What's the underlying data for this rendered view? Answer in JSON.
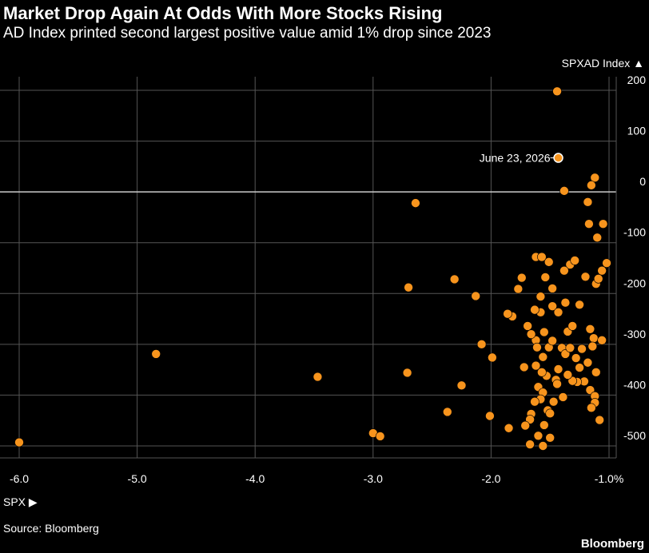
{
  "title": "Market Drop Again At Odds With More Stocks Rising",
  "subtitle": "AD Index printed second largest positive value amid 1% drop since 2023",
  "source": "Source: Bloomberg",
  "brand": "Bloomberg",
  "chart_data": {
    "type": "scatter",
    "xlabel": "SPX ▶",
    "ylabel": "SPXAD Index ▲",
    "xlim": [
      -6.1,
      -0.95
    ],
    "ylim": [
      -510,
      215
    ],
    "x_ticks": [
      "-6.0",
      "-5.0",
      "-4.0",
      "-3.0",
      "-2.0",
      "-1.0%"
    ],
    "x_tick_values": [
      -6.0,
      -5.0,
      -4.0,
      -3.0,
      -2.0,
      -1.0
    ],
    "y_ticks": [
      "200",
      "100",
      "0",
      "-100",
      "-200",
      "-300",
      "-400",
      "-500"
    ],
    "y_tick_values": [
      200,
      100,
      0,
      -100,
      -200,
      -300,
      -400,
      -500
    ],
    "grid": true,
    "colors": {
      "points": "#f7941d",
      "highlight": "#ffffff",
      "background": "#000000",
      "grid": "#555555"
    },
    "annotation": {
      "text": "June 23, 2026",
      "x": -1.43,
      "y": 67
    },
    "series": [
      {
        "points": [
          [
            -1.44,
            198
          ],
          [
            -1.43,
            67
          ],
          [
            -1.12,
            28
          ],
          [
            -1.15,
            13
          ],
          [
            -1.38,
            2
          ],
          [
            -2.64,
            -22
          ],
          [
            -1.18,
            -20
          ],
          [
            -1.17,
            -63
          ],
          [
            -1.05,
            -63
          ],
          [
            -1.1,
            -90
          ],
          [
            -1.02,
            -140
          ],
          [
            -1.06,
            -155
          ],
          [
            -1.33,
            -143
          ],
          [
            -1.38,
            -155
          ],
          [
            -1.29,
            -135
          ],
          [
            -1.51,
            -138
          ],
          [
            -1.54,
            -168
          ],
          [
            -1.62,
            -128
          ],
          [
            -1.57,
            -128
          ],
          [
            -1.58,
            -206
          ],
          [
            -1.11,
            -181
          ],
          [
            -1.2,
            -167
          ],
          [
            -1.48,
            -190
          ],
          [
            -1.58,
            -237
          ],
          [
            -1.09,
            -171
          ],
          [
            -1.48,
            -225
          ],
          [
            -1.63,
            -232
          ],
          [
            -2.31,
            -172
          ],
          [
            -2.7,
            -188
          ],
          [
            -1.43,
            -237
          ],
          [
            -1.77,
            -191
          ],
          [
            -1.74,
            -169
          ],
          [
            -1.37,
            -218
          ],
          [
            -1.25,
            -222
          ],
          [
            -1.35,
            -275
          ],
          [
            -1.31,
            -264
          ],
          [
            -1.69,
            -264
          ],
          [
            -1.82,
            -245
          ],
          [
            -1.86,
            -240
          ],
          [
            -2.13,
            -205
          ],
          [
            -1.55,
            -276
          ],
          [
            -1.62,
            -292
          ],
          [
            -1.61,
            -306
          ],
          [
            -1.56,
            -325
          ],
          [
            -1.66,
            -280
          ],
          [
            -1.51,
            -306
          ],
          [
            -1.48,
            -293
          ],
          [
            -1.4,
            -307
          ],
          [
            -1.37,
            -319
          ],
          [
            -1.33,
            -307
          ],
          [
            -1.16,
            -270
          ],
          [
            -1.13,
            -288
          ],
          [
            -1.06,
            -292
          ],
          [
            -1.14,
            -304
          ],
          [
            -1.23,
            -309
          ],
          [
            -1.28,
            -327
          ],
          [
            -1.25,
            -346
          ],
          [
            -1.18,
            -336
          ],
          [
            -1.11,
            -355
          ],
          [
            -1.16,
            -390
          ],
          [
            -1.21,
            -373
          ],
          [
            -1.27,
            -374
          ],
          [
            -1.31,
            -372
          ],
          [
            -1.35,
            -360
          ],
          [
            -1.43,
            -349
          ],
          [
            -1.45,
            -370
          ],
          [
            -1.53,
            -362
          ],
          [
            -1.57,
            -355
          ],
          [
            -1.62,
            -342
          ],
          [
            -1.72,
            -345
          ],
          [
            -2.08,
            -300
          ],
          [
            -1.99,
            -326
          ],
          [
            -1.44,
            -378
          ],
          [
            -1.6,
            -384
          ],
          [
            -1.56,
            -395
          ],
          [
            -1.58,
            -408
          ],
          [
            -1.63,
            -413
          ],
          [
            -1.66,
            -437
          ],
          [
            -1.67,
            -448
          ],
          [
            -1.71,
            -460
          ],
          [
            -1.12,
            -402
          ],
          [
            -1.12,
            -415
          ],
          [
            -1.15,
            -425
          ],
          [
            -1.08,
            -449
          ],
          [
            -1.39,
            -404
          ],
          [
            -1.47,
            -413
          ],
          [
            -1.52,
            -430
          ],
          [
            -1.5,
            -436
          ],
          [
            -1.55,
            -459
          ],
          [
            -1.5,
            -484
          ],
          [
            -1.56,
            -500
          ],
          [
            -1.6,
            -480
          ],
          [
            -1.67,
            -497
          ],
          [
            -1.85,
            -465
          ],
          [
            -2.01,
            -441
          ],
          [
            -2.37,
            -433
          ],
          [
            -2.25,
            -381
          ],
          [
            -2.71,
            -356
          ],
          [
            -3.47,
            -364
          ],
          [
            -4.84,
            -319
          ],
          [
            -6.0,
            -493
          ],
          [
            -3.0,
            -475
          ],
          [
            -2.94,
            -481
          ]
        ]
      }
    ]
  }
}
